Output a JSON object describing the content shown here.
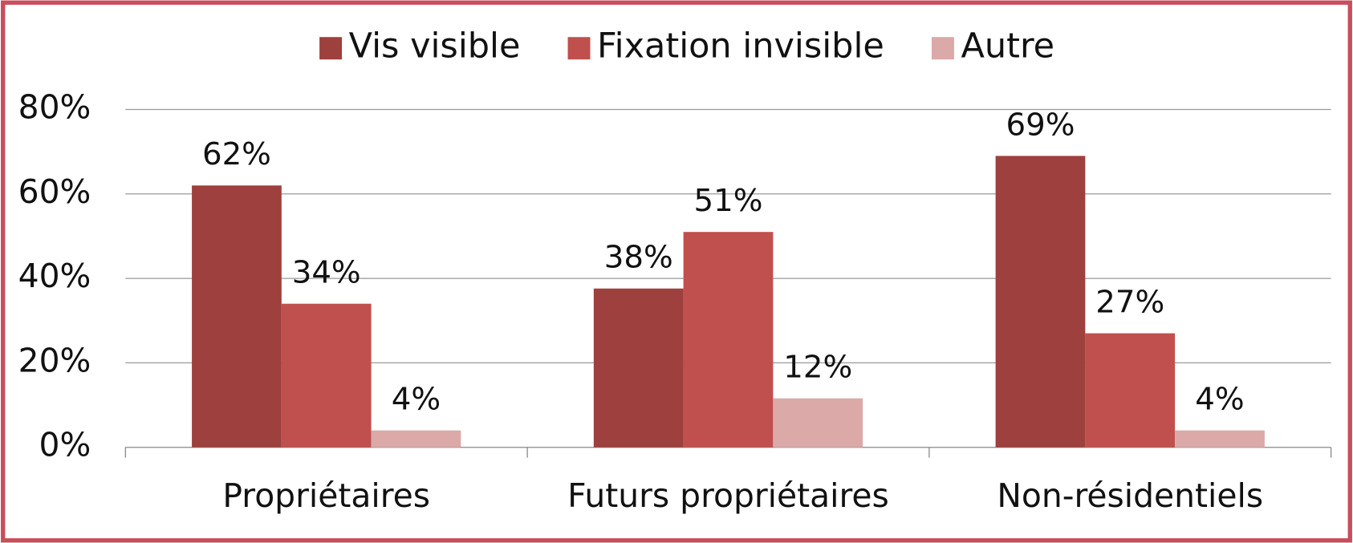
{
  "chart_data": {
    "type": "bar",
    "categories": [
      "Propriétaires",
      "Futurs propriétaires",
      "Non-résidentiels"
    ],
    "series": [
      {
        "name": "Vis visible",
        "color": "#9e403d",
        "values": [
          62,
          37.6,
          69
        ],
        "value_labels": [
          "62%",
          "38%",
          "69%"
        ]
      },
      {
        "name": "Fixation invisible",
        "color": "#c0504d",
        "values": [
          34,
          51,
          27
        ],
        "value_labels": [
          "34%",
          "51%",
          "27%"
        ]
      },
      {
        "name": "Autre",
        "color": "#dba9a8",
        "values": [
          4,
          11.6,
          4
        ],
        "value_labels": [
          "4%",
          "12%",
          "4%"
        ]
      }
    ],
    "ylim": [
      0,
      80
    ],
    "yticks": [
      {
        "value": 0,
        "label": "0%"
      },
      {
        "value": 20,
        "label": "20%"
      },
      {
        "value": 40,
        "label": "40%"
      },
      {
        "value": 60,
        "label": "60%"
      },
      {
        "value": 80,
        "label": "80%"
      }
    ],
    "grid": true,
    "legend": "top"
  }
}
